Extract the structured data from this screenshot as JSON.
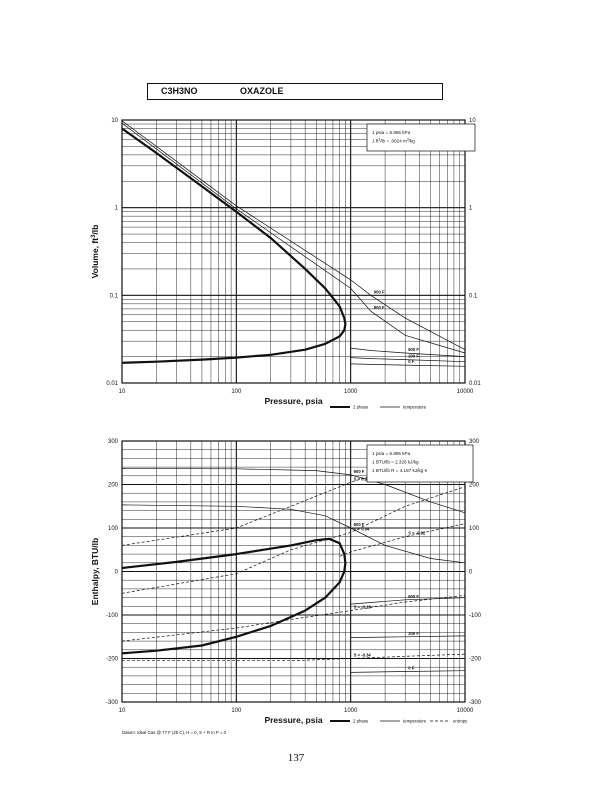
{
  "header": {
    "formula": "C3H3NO",
    "compound": "OXAZOLE"
  },
  "page_number": "137",
  "footer_note": "Datum: Ideal Gas @ 77 F (25 C), H = 0, S + R In P = 0",
  "chart_data": [
    {
      "type": "line",
      "id": "volume",
      "xscale": "log",
      "yscale": "log",
      "xlim": [
        10,
        10000
      ],
      "ylim": [
        0.01,
        10
      ],
      "xlabel": "Pressure,  psia",
      "ylabel": "Volume, ft^3/lb",
      "x_ticks": [
        "10",
        "100",
        "1000",
        "10000"
      ],
      "y_ticks": [
        "0.01",
        "0.1",
        "1",
        "10"
      ],
      "grid": true,
      "conversion_note": [
        "1 psia  =  6.895 kPa",
        "1 ft^3/lb  =  .0624 m^3/kg"
      ],
      "legend": [
        {
          "label": "2 phase",
          "style": "thick"
        },
        {
          "label": "temperature",
          "style": "thin"
        }
      ],
      "saturation_curve": {
        "x": [
          10,
          20,
          50,
          100,
          200,
          400,
          600,
          800,
          880,
          900,
          880,
          800,
          600,
          400,
          200,
          100,
          50,
          20,
          10
        ],
        "y": [
          8.0,
          4.2,
          1.75,
          0.9,
          0.45,
          0.2,
          0.12,
          0.075,
          0.055,
          0.047,
          0.04,
          0.034,
          0.028,
          0.024,
          0.021,
          0.0195,
          0.0185,
          0.0175,
          0.017
        ]
      },
      "series": [
        {
          "name": "900 F",
          "x": [
            10,
            100,
            1000,
            1500,
            3000,
            10000
          ],
          "y": [
            9.8,
            1.05,
            0.15,
            0.1,
            0.055,
            0.024
          ]
        },
        {
          "name": "800 F",
          "x": [
            10,
            100,
            1000,
            1500,
            3000,
            10000
          ],
          "y": [
            9.2,
            0.97,
            0.12,
            0.066,
            0.035,
            0.022
          ]
        },
        {
          "name": "600 F",
          "x": [
            1000,
            1500,
            3000,
            10000
          ],
          "y": [
            0.025,
            0.0235,
            0.022,
            0.02
          ]
        },
        {
          "name": "200 F",
          "x": [
            1000,
            1500,
            3000,
            10000
          ],
          "y": [
            0.0195,
            0.019,
            0.0185,
            0.0175
          ]
        },
        {
          "name": "0 F",
          "x": [
            1000,
            1500,
            3000,
            10000
          ],
          "y": [
            0.0165,
            0.0163,
            0.016,
            0.0155
          ]
        }
      ]
    },
    {
      "type": "line",
      "id": "enthalpy",
      "xscale": "log",
      "yscale": "linear",
      "xlim": [
        10,
        10000
      ],
      "ylim": [
        -300,
        300
      ],
      "xlabel": "Pressure,  psia",
      "ylabel": "Enthalpy, BTU/lb",
      "x_ticks": [
        "10",
        "100",
        "1000",
        "10000"
      ],
      "y_ticks": [
        "-300",
        "-200",
        "-100",
        "0",
        "100",
        "200",
        "300"
      ],
      "grid": true,
      "conversion_note": [
        "1 psia  =  6.895 kPa",
        "1 BTU/lb  =  2.326 kJ/kg",
        "1 BTU/lb R  =  4.187 kJ/kg K"
      ],
      "legend": [
        {
          "label": "2 phase",
          "style": "thick"
        },
        {
          "label": "temperature",
          "style": "thin"
        },
        {
          "label": "entropy",
          "style": "dashed"
        }
      ],
      "saturation_curve": {
        "x": [
          10,
          30,
          100,
          300,
          500,
          650,
          800,
          880,
          900,
          880,
          800,
          600,
          400,
          200,
          100,
          50,
          20,
          10
        ],
        "y": [
          8,
          22,
          40,
          60,
          72,
          75,
          65,
          40,
          20,
          0,
          -25,
          -60,
          -90,
          -125,
          -150,
          -170,
          -182,
          -188
        ]
      },
      "series": [
        {
          "name": "900 F",
          "kind": "temperature",
          "x": [
            10,
            100,
            500,
            1000,
            2000,
            5000,
            10000
          ],
          "y": [
            237,
            236,
            232,
            222,
            200,
            160,
            135
          ]
        },
        {
          "name": "800 F",
          "kind": "temperature",
          "x": [
            10,
            100,
            300,
            600,
            1000,
            2000,
            5000,
            10000
          ],
          "y": [
            153,
            150,
            143,
            128,
            100,
            60,
            30,
            20
          ]
        },
        {
          "name": "600 F",
          "kind": "temperature",
          "x": [
            1000,
            3000,
            10000
          ],
          "y": [
            -75,
            -65,
            -60
          ]
        },
        {
          "name": "200 F",
          "kind": "temperature",
          "x": [
            1000,
            3000,
            10000
          ],
          "y": [
            -152,
            -150,
            -148
          ]
        },
        {
          "name": "0 F",
          "kind": "temperature",
          "x": [
            1000,
            3000,
            10000
          ],
          "y": [
            -232,
            -230,
            -228
          ]
        },
        {
          "name": "S = 0.16",
          "kind": "entropy",
          "x": [
            10,
            100,
            300,
            1000,
            3000,
            10000
          ],
          "y": [
            60,
            100,
            150,
            205,
            245,
            285
          ]
        },
        {
          "name": "S = 0.04",
          "kind": "entropy",
          "x": [
            10,
            100,
            300,
            1000,
            3000,
            10000
          ],
          "y": [
            -50,
            -5,
            50,
            90,
            150,
            195
          ]
        },
        {
          "name": "S = -0.02",
          "kind": "entropy",
          "x": [
            800,
            1000,
            3000,
            10000
          ],
          "y": [
            35,
            45,
            80,
            110
          ]
        },
        {
          "name": "S = -0.18",
          "kind": "entropy",
          "x": [
            10,
            100,
            300,
            1000,
            3000,
            10000
          ],
          "y": [
            -160,
            -130,
            -110,
            -90,
            -70,
            -55
          ]
        },
        {
          "name": "S = -0.34",
          "kind": "entropy",
          "x": [
            10,
            100,
            300,
            1000,
            3000,
            10000
          ],
          "y": [
            -205,
            -205,
            -205,
            -200,
            -195,
            -190
          ]
        }
      ]
    }
  ]
}
